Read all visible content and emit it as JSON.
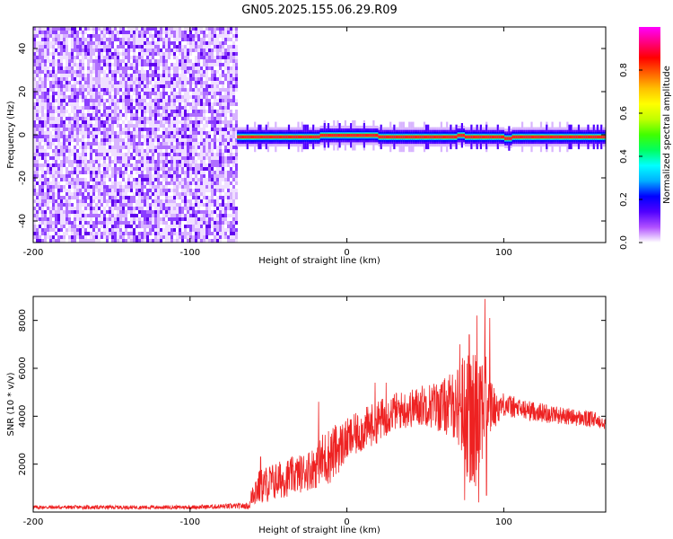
{
  "title": "GN05.2025.155.06.29.R09",
  "chart_data": [
    {
      "type": "heatmap",
      "xlabel": "Height of straight line (km)",
      "ylabel": "Frequency (Hz)",
      "xlim": [
        -200,
        165
      ],
      "ylim": [
        -50,
        50
      ],
      "xticks": [
        -200,
        -100,
        0,
        100
      ],
      "yticks": [
        -40,
        -20,
        0,
        20,
        40
      ],
      "noise_region_x": [
        -200,
        -70
      ],
      "signal_band": {
        "x_start": -70,
        "x_end": 165,
        "freq_center": -1,
        "freq_halfwidth": 1.5,
        "wobbles": [
          {
            "x": -70,
            "f": 0
          },
          {
            "x": -20,
            "f": 0
          },
          {
            "x": -18,
            "f": 2
          },
          {
            "x": 20,
            "f": 0
          },
          {
            "x": 70,
            "f": 2
          },
          {
            "x": 75,
            "f": 0
          },
          {
            "x": 100,
            "f": -2
          },
          {
            "x": 105,
            "f": 0
          }
        ]
      },
      "colorbar": {
        "label": "Normalized spectral amplitude",
        "ticks": [
          "0.0",
          "0.2",
          "0.4",
          "0.6",
          "0.8"
        ],
        "range": [
          0,
          1
        ],
        "colors": [
          "#ffffff",
          "#b050ff",
          "#5000ff",
          "#0000ff",
          "#00b0ff",
          "#00ffff",
          "#00ff60",
          "#40ff00",
          "#c0ff00",
          "#ffff00",
          "#ffc000",
          "#ff6000",
          "#ff0000",
          "#ff0080",
          "#ff00ff"
        ]
      },
      "grid": false
    },
    {
      "type": "line",
      "xlabel": "Height of straight line (km)",
      "ylabel": "SNR (10 * v/v)",
      "xlim": [
        -200,
        165
      ],
      "ylim": [
        0,
        9000
      ],
      "xticks": [
        -200,
        -100,
        0,
        100
      ],
      "yticks": [
        2000,
        4000,
        6000,
        8000
      ],
      "line_color": "#ee2222",
      "series": [
        {
          "x": [
            -200,
            -150,
            -100,
            -70,
            -62,
            -60,
            -50,
            -40,
            -30,
            -20,
            -15,
            -10,
            0,
            10,
            20,
            30,
            40,
            50,
            60,
            70,
            75,
            80,
            85,
            90,
            95,
            100,
            110,
            120,
            130,
            140,
            150,
            165
          ],
          "y": [
            200,
            200,
            200,
            250,
            250,
            900,
            1200,
            1400,
            1600,
            1900,
            2200,
            2400,
            3000,
            3400,
            3800,
            4200,
            4300,
            4500,
            4400,
            4500,
            4300,
            3500,
            4800,
            4500,
            4300,
            4500,
            4300,
            4200,
            4100,
            4000,
            3900,
            3800
          ],
          "noise_amp": [
            80,
            80,
            80,
            120,
            120,
            700,
            800,
            800,
            800,
            900,
            1200,
            1200,
            900,
            900,
            900,
            800,
            800,
            900,
            1100,
            1500,
            2500,
            3000,
            3000,
            1500,
            700,
            500,
            450,
            400,
            400,
            350,
            350,
            350
          ],
          "peaks": [
            {
              "x": 88,
              "y": 8900
            },
            {
              "x": 83,
              "y": 8200
            },
            {
              "x": 78,
              "y": 7400
            },
            {
              "x": 72,
              "y": 7000
            },
            {
              "x": 91,
              "y": 8100
            },
            {
              "x": 75,
              "y": 500
            },
            {
              "x": 84,
              "y": 400
            },
            {
              "x": 89,
              "y": 700
            },
            {
              "x": -18,
              "y": 4600
            },
            {
              "x": -55,
              "y": 2300
            },
            {
              "x": 18,
              "y": 5400
            },
            {
              "x": 25,
              "y": 5400
            }
          ]
        }
      ],
      "grid": false
    }
  ]
}
